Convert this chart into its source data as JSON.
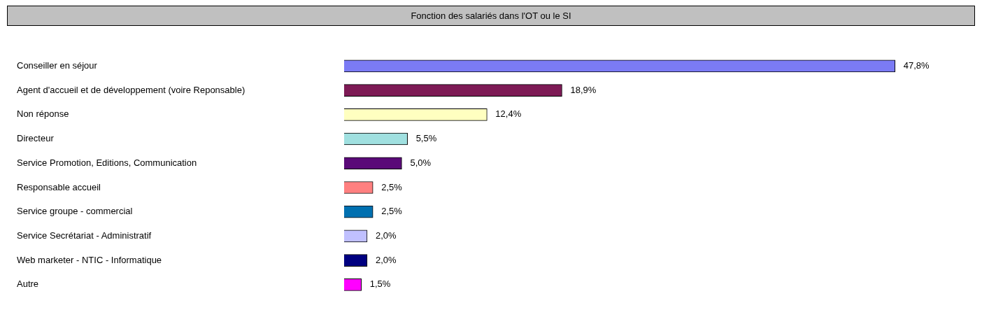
{
  "chart_data": {
    "type": "bar",
    "orientation": "horizontal",
    "title": "Fonction des salariés dans l'OT ou le SI",
    "categories": [
      "Conseiller en séjour",
      "Agent d'accueil et de développement (voire Reponsable)",
      "Non réponse",
      "Directeur",
      "Service Promotion, Editions, Communication",
      "Responsable accueil",
      "Service groupe - commercial",
      "Service Secrétariat - Administratif",
      "Web marketer - NTIC - Informatique",
      "Autre"
    ],
    "values": [
      47.8,
      18.9,
      12.4,
      5.5,
      5.0,
      2.5,
      2.5,
      2.0,
      2.0,
      1.5
    ],
    "value_labels": [
      "47,8%",
      "18,9%",
      "12,4%",
      "5,5%",
      "5,0%",
      "2,5%",
      "2,5%",
      "2,0%",
      "2,0%",
      "1,5%"
    ],
    "colors": [
      "#7b7bf5",
      "#7d1a55",
      "#ffffc0",
      "#a0e0e0",
      "#5a0a78",
      "#ff8080",
      "#0070b0",
      "#c0c0ff",
      "#000080",
      "#ff00ff"
    ]
  }
}
